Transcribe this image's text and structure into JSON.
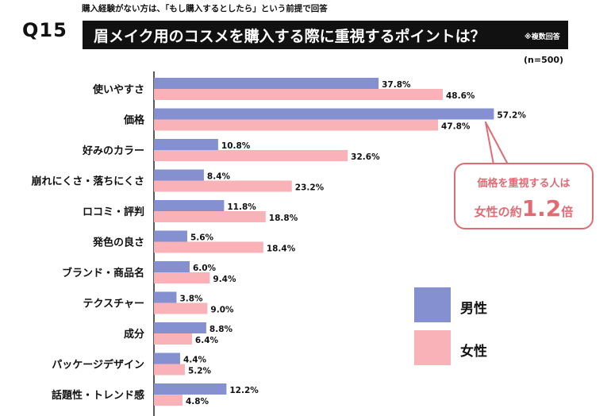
{
  "header": {
    "note": "購入経験がない方は、「もし購入するとしたら」という前提で回答",
    "question_number": "Q15",
    "title": "眉メイク用のコスメを購入する際に重視するポイントは？",
    "title_note": "※複数回答",
    "sample": "(n=500)"
  },
  "callout": {
    "line1": "価格を重視する人は",
    "line2_prefix": "女性の約",
    "line2_value": "1.2",
    "line2_suffix": "倍"
  },
  "colors": {
    "male": "#8590d0",
    "female": "#f8b2b8",
    "accent": "#e06b73"
  },
  "chart_data": {
    "type": "bar",
    "orientation": "horizontal",
    "categories": [
      "使いやすさ",
      "価格",
      "好みのカラー",
      "崩れにくさ・落ちにくさ",
      "ロコミ・評判",
      "発色の良さ",
      "ブランド・商品名",
      "テクスチャー",
      "成分",
      "パッケージデザイン",
      "話題性・トレンド感"
    ],
    "series": [
      {
        "name": "男性",
        "values": [
          37.8,
          57.2,
          10.8,
          8.4,
          11.8,
          5.6,
          6.0,
          3.8,
          8.8,
          4.4,
          12.2
        ]
      },
      {
        "name": "女性",
        "values": [
          48.6,
          47.8,
          32.6,
          23.2,
          18.8,
          18.4,
          9.4,
          9.0,
          6.4,
          5.2,
          4.8
        ]
      }
    ],
    "value_suffix": "%",
    "legend_position": "right"
  }
}
